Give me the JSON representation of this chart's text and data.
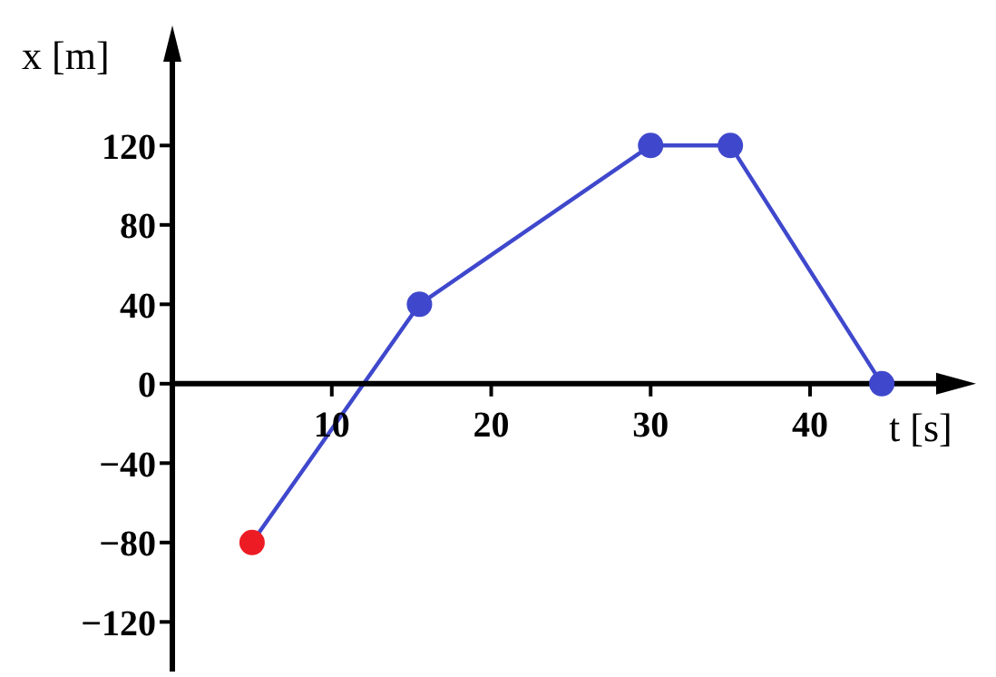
{
  "chart_data": {
    "type": "line",
    "xlabel": "t [s]",
    "ylabel": "x [m]",
    "x": [
      5,
      15.5,
      30,
      35,
      44.5
    ],
    "series": [
      {
        "color": "#3f48cc",
        "colors": [
          "#ed1c24",
          "#3f48cc",
          "#3f48cc",
          "#3f48cc",
          "#3f48cc"
        ],
        "values": [
          -80,
          40,
          120,
          120,
          0
        ]
      }
    ],
    "xlim": [
      0,
      49.5
    ],
    "xticks": [
      10,
      20,
      30,
      40
    ],
    "ylim": [
      -145,
      175
    ],
    "yticks": [
      -120,
      -80,
      -40,
      0,
      40,
      80,
      120
    ],
    "marker": "circle",
    "line_style": "solid",
    "grid": false,
    "legend": false
  }
}
